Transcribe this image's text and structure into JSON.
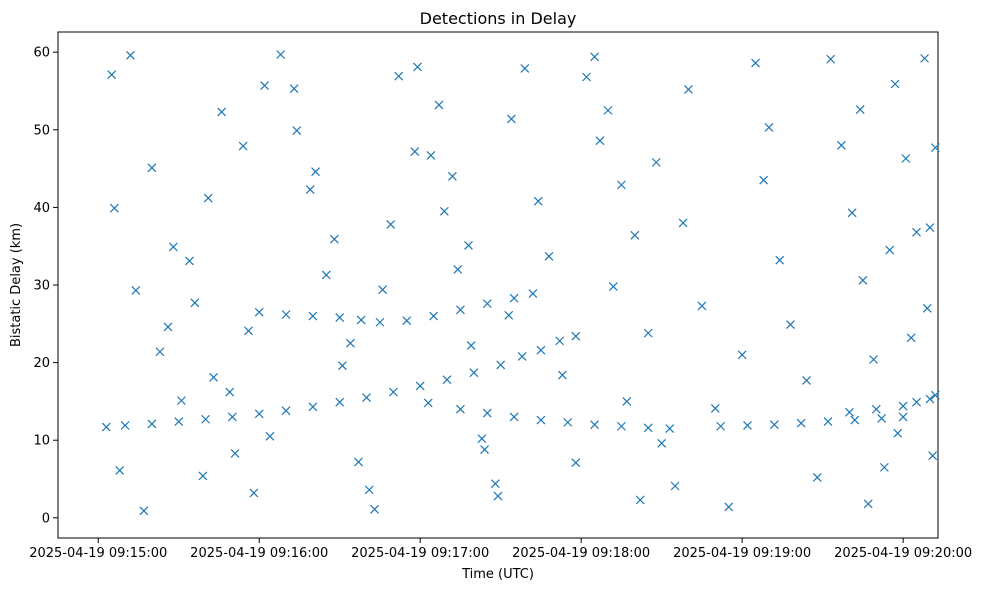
{
  "chart_data": {
    "type": "scatter",
    "title": "Detections in Delay",
    "xlabel": "Time (UTC)",
    "ylabel": "Bistatic Delay (km)",
    "x_axis": {
      "type": "time",
      "range": [
        "2025-04-19 09:14:45",
        "2025-04-19 09:20:13"
      ],
      "ticks": [
        "2025-04-19 09:15:00",
        "2025-04-19 09:16:00",
        "2025-04-19 09:17:00",
        "2025-04-19 09:18:00",
        "2025-04-19 09:19:00",
        "2025-04-19 09:20:00"
      ]
    },
    "y_axis": {
      "range": [
        -2.6,
        62.6
      ],
      "ticks": [
        0,
        10,
        20,
        30,
        40,
        50,
        60
      ]
    },
    "marker": "x",
    "marker_color": "#1f77b4",
    "grid": false,
    "series": [
      {
        "points": [
          [
            "2025-04-19 09:15:03",
            11.7
          ],
          [
            "2025-04-19 09:15:10",
            11.9
          ],
          [
            "2025-04-19 09:15:20",
            12.1
          ],
          [
            "2025-04-19 09:15:30",
            12.4
          ],
          [
            "2025-04-19 09:15:40",
            12.7
          ],
          [
            "2025-04-19 09:15:50",
            13.0
          ],
          [
            "2025-04-19 09:16:00",
            13.4
          ],
          [
            "2025-04-19 09:16:10",
            13.8
          ],
          [
            "2025-04-19 09:16:20",
            14.3
          ],
          [
            "2025-04-19 09:16:30",
            14.9
          ],
          [
            "2025-04-19 09:16:40",
            15.5
          ],
          [
            "2025-04-19 09:16:50",
            16.2
          ],
          [
            "2025-04-19 09:17:00",
            17.0
          ],
          [
            "2025-04-19 09:17:10",
            17.8
          ],
          [
            "2025-04-19 09:17:20",
            18.7
          ],
          [
            "2025-04-19 09:17:30",
            19.7
          ],
          [
            "2025-04-19 09:17:38",
            20.8
          ],
          [
            "2025-04-19 09:17:45",
            21.6
          ],
          [
            "2025-04-19 09:17:52",
            22.8
          ],
          [
            "2025-04-19 09:17:58",
            23.4
          ],
          [
            "2025-04-19 09:16:00",
            26.5
          ],
          [
            "2025-04-19 09:16:10",
            26.2
          ],
          [
            "2025-04-19 09:16:20",
            26.0
          ],
          [
            "2025-04-19 09:16:30",
            25.8
          ],
          [
            "2025-04-19 09:16:38",
            25.5
          ],
          [
            "2025-04-19 09:16:45",
            25.2
          ],
          [
            "2025-04-19 09:16:55",
            25.4
          ],
          [
            "2025-04-19 09:17:05",
            26.0
          ],
          [
            "2025-04-19 09:17:15",
            26.8
          ],
          [
            "2025-04-19 09:17:25",
            27.6
          ],
          [
            "2025-04-19 09:17:35",
            28.3
          ],
          [
            "2025-04-19 09:17:42",
            28.9
          ],
          [
            "2025-04-19 09:17:03",
            14.8
          ],
          [
            "2025-04-19 09:17:15",
            14.0
          ],
          [
            "2025-04-19 09:17:25",
            13.5
          ],
          [
            "2025-04-19 09:17:35",
            13.0
          ],
          [
            "2025-04-19 09:17:45",
            12.6
          ],
          [
            "2025-04-19 09:17:55",
            12.3
          ],
          [
            "2025-04-19 09:18:05",
            12.0
          ],
          [
            "2025-04-19 09:18:15",
            11.8
          ],
          [
            "2025-04-19 09:18:25",
            11.6
          ],
          [
            "2025-04-19 09:18:33",
            11.5
          ],
          [
            "2025-04-19 09:18:52",
            11.8
          ],
          [
            "2025-04-19 09:19:02",
            11.9
          ],
          [
            "2025-04-19 09:19:12",
            12.0
          ],
          [
            "2025-04-19 09:19:22",
            12.2
          ],
          [
            "2025-04-19 09:19:32",
            12.4
          ],
          [
            "2025-04-19 09:19:42",
            12.6
          ],
          [
            "2025-04-19 09:19:52",
            12.8
          ],
          [
            "2025-04-19 09:20:00",
            13.0
          ],
          [
            "2025-04-19 09:19:40",
            13.6
          ],
          [
            "2025-04-19 09:19:50",
            14.0
          ],
          [
            "2025-04-19 09:20:00",
            14.4
          ],
          [
            "2025-04-19 09:20:05",
            14.9
          ],
          [
            "2025-04-19 09:20:10",
            15.3
          ],
          [
            "2025-04-19 09:20:12",
            15.8
          ],
          [
            "2025-04-19 09:15:05",
            57.1
          ],
          [
            "2025-04-19 09:15:12",
            59.6
          ],
          [
            "2025-04-19 09:15:20",
            45.1
          ],
          [
            "2025-04-19 09:15:28",
            34.9
          ],
          [
            "2025-04-19 09:15:36",
            27.7
          ],
          [
            "2025-04-19 09:15:43",
            18.1
          ],
          [
            "2025-04-19 09:15:51",
            8.3
          ],
          [
            "2025-04-19 09:15:58",
            3.2
          ],
          [
            "2025-04-19 09:15:06",
            39.9
          ],
          [
            "2025-04-19 09:15:14",
            29.3
          ],
          [
            "2025-04-19 09:15:23",
            21.4
          ],
          [
            "2025-04-19 09:15:31",
            15.1
          ],
          [
            "2025-04-19 09:15:39",
            5.4
          ],
          [
            "2025-04-19 09:15:46",
            52.3
          ],
          [
            "2025-04-19 09:15:54",
            47.9
          ],
          [
            "2025-04-19 09:16:02",
            55.7
          ],
          [
            "2025-04-19 09:15:08",
            6.1
          ],
          [
            "2025-04-19 09:15:17",
            0.9
          ],
          [
            "2025-04-19 09:15:26",
            24.6
          ],
          [
            "2025-04-19 09:15:34",
            33.1
          ],
          [
            "2025-04-19 09:15:41",
            41.2
          ],
          [
            "2025-04-19 09:15:49",
            16.2
          ],
          [
            "2025-04-19 09:15:56",
            24.1
          ],
          [
            "2025-04-19 09:16:04",
            10.5
          ],
          [
            "2025-04-19 09:16:08",
            59.7
          ],
          [
            "2025-04-19 09:16:14",
            49.9
          ],
          [
            "2025-04-19 09:16:19",
            42.3
          ],
          [
            "2025-04-19 09:16:25",
            31.3
          ],
          [
            "2025-04-19 09:16:31",
            19.6
          ],
          [
            "2025-04-19 09:16:37",
            7.2
          ],
          [
            "2025-04-19 09:16:43",
            1.1
          ],
          [
            "2025-04-19 09:16:49",
            37.8
          ],
          [
            "2025-04-19 09:16:13",
            55.3
          ],
          [
            "2025-04-19 09:16:21",
            44.6
          ],
          [
            "2025-04-19 09:16:28",
            35.9
          ],
          [
            "2025-04-19 09:16:34",
            22.5
          ],
          [
            "2025-04-19 09:16:41",
            3.6
          ],
          [
            "2025-04-19 09:16:46",
            29.4
          ],
          [
            "2025-04-19 09:16:52",
            56.9
          ],
          [
            "2025-04-19 09:16:58",
            47.2
          ],
          [
            "2025-04-19 09:16:59",
            58.1
          ],
          [
            "2025-04-19 09:17:04",
            46.7
          ],
          [
            "2025-04-19 09:17:09",
            39.5
          ],
          [
            "2025-04-19 09:17:14",
            32.0
          ],
          [
            "2025-04-19 09:17:19",
            22.2
          ],
          [
            "2025-04-19 09:17:24",
            8.8
          ],
          [
            "2025-04-19 09:17:29",
            2.8
          ],
          [
            "2025-04-19 09:17:34",
            51.4
          ],
          [
            "2025-04-19 09:17:07",
            53.2
          ],
          [
            "2025-04-19 09:17:12",
            44.0
          ],
          [
            "2025-04-19 09:17:18",
            35.1
          ],
          [
            "2025-04-19 09:17:23",
            10.2
          ],
          [
            "2025-04-19 09:17:28",
            4.4
          ],
          [
            "2025-04-19 09:17:33",
            26.1
          ],
          [
            "2025-04-19 09:17:39",
            57.9
          ],
          [
            "2025-04-19 09:17:44",
            40.8
          ],
          [
            "2025-04-19 09:17:48",
            33.7
          ],
          [
            "2025-04-19 09:17:53",
            18.4
          ],
          [
            "2025-04-19 09:17:58",
            7.1
          ],
          [
            "2025-04-19 09:18:02",
            56.8
          ],
          [
            "2025-04-19 09:18:07",
            48.6
          ],
          [
            "2025-04-19 09:18:12",
            29.8
          ],
          [
            "2025-04-19 09:18:17",
            15.0
          ],
          [
            "2025-04-19 09:18:22",
            2.3
          ],
          [
            "2025-04-19 09:18:05",
            59.4
          ],
          [
            "2025-04-19 09:18:10",
            52.5
          ],
          [
            "2025-04-19 09:18:15",
            42.9
          ],
          [
            "2025-04-19 09:18:20",
            36.4
          ],
          [
            "2025-04-19 09:18:25",
            23.8
          ],
          [
            "2025-04-19 09:18:30",
            9.6
          ],
          [
            "2025-04-19 09:18:35",
            4.1
          ],
          [
            "2025-04-19 09:18:40",
            55.2
          ],
          [
            "2025-04-19 09:18:28",
            45.8
          ],
          [
            "2025-04-19 09:18:38",
            38.0
          ],
          [
            "2025-04-19 09:18:45",
            27.3
          ],
          [
            "2025-04-19 09:18:50",
            14.1
          ],
          [
            "2025-04-19 09:18:55",
            1.4
          ],
          [
            "2025-04-19 09:19:00",
            21.0
          ],
          [
            "2025-04-19 09:19:05",
            58.6
          ],
          [
            "2025-04-19 09:19:10",
            50.3
          ],
          [
            "2025-04-19 09:19:08",
            43.5
          ],
          [
            "2025-04-19 09:19:14",
            33.2
          ],
          [
            "2025-04-19 09:19:18",
            24.9
          ],
          [
            "2025-04-19 09:19:24",
            17.7
          ],
          [
            "2025-04-19 09:19:28",
            5.2
          ],
          [
            "2025-04-19 09:19:33",
            59.1
          ],
          [
            "2025-04-19 09:19:37",
            48.0
          ],
          [
            "2025-04-19 09:19:41",
            39.3
          ],
          [
            "2025-04-19 09:19:45",
            30.6
          ],
          [
            "2025-04-19 09:19:49",
            20.4
          ],
          [
            "2025-04-19 09:19:53",
            6.5
          ],
          [
            "2025-04-19 09:19:57",
            55.9
          ],
          [
            "2025-04-19 09:20:01",
            46.3
          ],
          [
            "2025-04-19 09:20:05",
            36.8
          ],
          [
            "2025-04-19 09:20:09",
            27.0
          ],
          [
            "2025-04-19 09:20:11",
            8.0
          ],
          [
            "2025-04-19 09:19:47",
            1.8
          ],
          [
            "2025-04-19 09:19:55",
            34.5
          ],
          [
            "2025-04-19 09:20:03",
            23.2
          ],
          [
            "2025-04-19 09:20:08",
            59.2
          ],
          [
            "2025-04-19 09:20:12",
            47.7
          ],
          [
            "2025-04-19 09:20:10",
            37.4
          ],
          [
            "2025-04-19 09:19:58",
            10.9
          ],
          [
            "2025-04-19 09:19:44",
            52.6
          ]
        ]
      }
    ]
  }
}
